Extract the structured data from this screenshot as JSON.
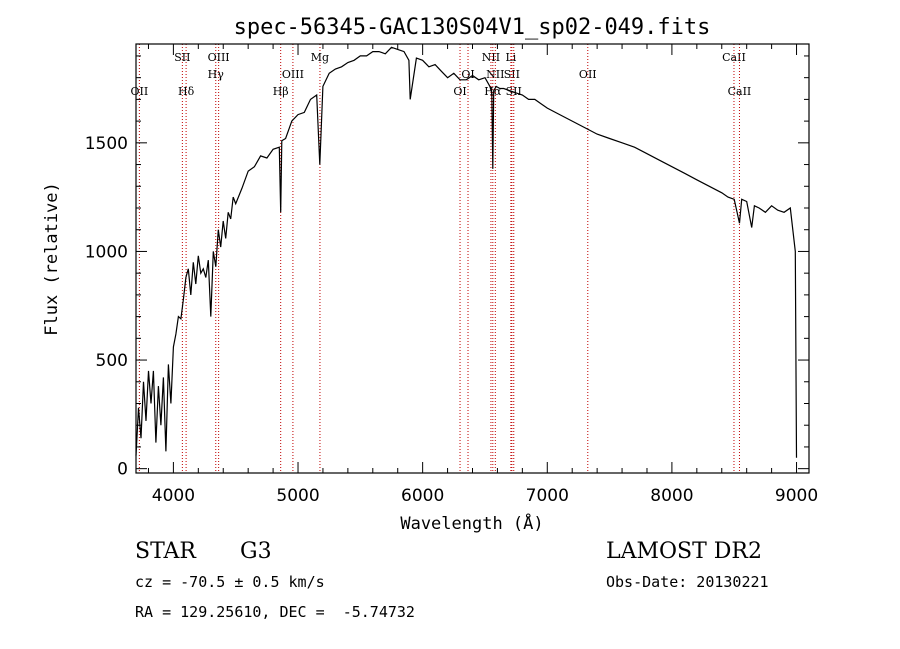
{
  "chart_data": {
    "type": "line",
    "title": "spec-56345-GAC130S04V1_sp02-049.fits",
    "xlabel": "Wavelength (Å)",
    "ylabel": "Flux (relative)",
    "xlim": [
      3700,
      9100
    ],
    "ylim": [
      -20,
      1955
    ],
    "xticks": [
      4000,
      5000,
      6000,
      7000,
      8000,
      9000
    ],
    "yticks": [
      0,
      500,
      1000,
      1500
    ],
    "line_color": "#000000",
    "marker_color": "#c00000",
    "series": [
      {
        "x": [
          3700,
          3720,
          3740,
          3760,
          3780,
          3800,
          3820,
          3840,
          3860,
          3880,
          3900,
          3920,
          3940,
          3960,
          3980,
          4000,
          4020,
          4040,
          4060,
          4080,
          4100,
          4120,
          4140,
          4160,
          4180,
          4200,
          4220,
          4240,
          4260,
          4280,
          4300,
          4320,
          4340,
          4360,
          4380,
          4400,
          4420,
          4440,
          4460,
          4480,
          4500,
          4550,
          4600,
          4650,
          4700,
          4750,
          4800,
          4850,
          4861,
          4870,
          4900,
          4950,
          5000,
          5050,
          5100,
          5150,
          5175,
          5200,
          5250,
          5300,
          5350,
          5400,
          5450,
          5500,
          5550,
          5600,
          5650,
          5700,
          5750,
          5800,
          5850,
          5890,
          5900,
          5950,
          6000,
          6050,
          6100,
          6150,
          6200,
          6250,
          6300,
          6350,
          6400,
          6450,
          6500,
          6540,
          6555,
          6563,
          6570,
          6590,
          6620,
          6650,
          6700,
          6750,
          6800,
          6850,
          6900,
          6950,
          7000,
          7100,
          7200,
          7300,
          7400,
          7500,
          7600,
          7700,
          7800,
          7900,
          8000,
          8100,
          8200,
          8300,
          8400,
          8450,
          8500,
          8542,
          8560,
          8600,
          8640,
          8662,
          8700,
          8750,
          8800,
          8850,
          8900,
          8950,
          8990,
          9000
        ],
        "y": [
          60,
          280,
          140,
          400,
          220,
          450,
          300,
          450,
          120,
          380,
          200,
          420,
          80,
          480,
          300,
          560,
          620,
          700,
          690,
          780,
          880,
          920,
          800,
          950,
          850,
          980,
          900,
          920,
          880,
          960,
          700,
          1000,
          930,
          1100,
          1020,
          1140,
          1060,
          1180,
          1150,
          1250,
          1220,
          1290,
          1370,
          1390,
          1440,
          1430,
          1470,
          1480,
          1180,
          1510,
          1520,
          1600,
          1630,
          1640,
          1700,
          1720,
          1400,
          1760,
          1820,
          1840,
          1850,
          1870,
          1880,
          1900,
          1900,
          1920,
          1920,
          1910,
          1940,
          1930,
          1920,
          1880,
          1700,
          1890,
          1880,
          1850,
          1860,
          1830,
          1800,
          1820,
          1790,
          1790,
          1810,
          1790,
          1800,
          1760,
          1730,
          1380,
          1740,
          1760,
          1750,
          1750,
          1740,
          1730,
          1720,
          1700,
          1700,
          1680,
          1660,
          1630,
          1600,
          1570,
          1540,
          1520,
          1500,
          1480,
          1450,
          1420,
          1390,
          1360,
          1330,
          1300,
          1270,
          1250,
          1240,
          1130,
          1240,
          1230,
          1110,
          1210,
          1200,
          1180,
          1210,
          1190,
          1180,
          1200,
          1000,
          50
        ]
      }
    ],
    "lines": [
      {
        "wavelength": 3727,
        "label": "OII",
        "row": 3
      },
      {
        "wavelength": 4072,
        "label": "SII",
        "row": 1
      },
      {
        "wavelength": 4102,
        "label": "Hδ",
        "row": 3
      },
      {
        "wavelength": 4340,
        "label": "Hγ",
        "row": 2
      },
      {
        "wavelength": 4363,
        "label": "OIII",
        "row": 1
      },
      {
        "wavelength": 4861,
        "label": "Hβ",
        "row": 3
      },
      {
        "wavelength": 4959,
        "label": "OIII",
        "row": 2
      },
      {
        "wavelength": 5176,
        "label": "Mg",
        "row": 1
      },
      {
        "wavelength": 6300,
        "label": "OI",
        "row": 3
      },
      {
        "wavelength": 6364,
        "label": "OI",
        "row": 2
      },
      {
        "wavelength": 6548,
        "label": "NII",
        "row": 1
      },
      {
        "wavelength": 6563,
        "label": "Hα",
        "row": 3
      },
      {
        "wavelength": 6583,
        "label": "NII",
        "row": 2
      },
      {
        "wavelength": 6708,
        "label": "Li",
        "row": 1
      },
      {
        "wavelength": 6716,
        "label": "SII",
        "row": 2
      },
      {
        "wavelength": 6731,
        "label": "SII",
        "row": 3
      },
      {
        "wavelength": 7325,
        "label": "OII",
        "row": 2
      },
      {
        "wavelength": 8498,
        "label": "CaII",
        "row": 1
      },
      {
        "wavelength": 8542,
        "label": "CaII",
        "row": 3
      }
    ]
  },
  "info": {
    "object_class": "STAR",
    "subclass": "G3",
    "survey": "LAMOST DR2",
    "redshift_text": "cz = -70.5 ± 0.5 km/s",
    "obs_date_text": "Obs-Date: 20130221",
    "coords_text": "RA = 129.25610, DEC =  -5.74732"
  }
}
